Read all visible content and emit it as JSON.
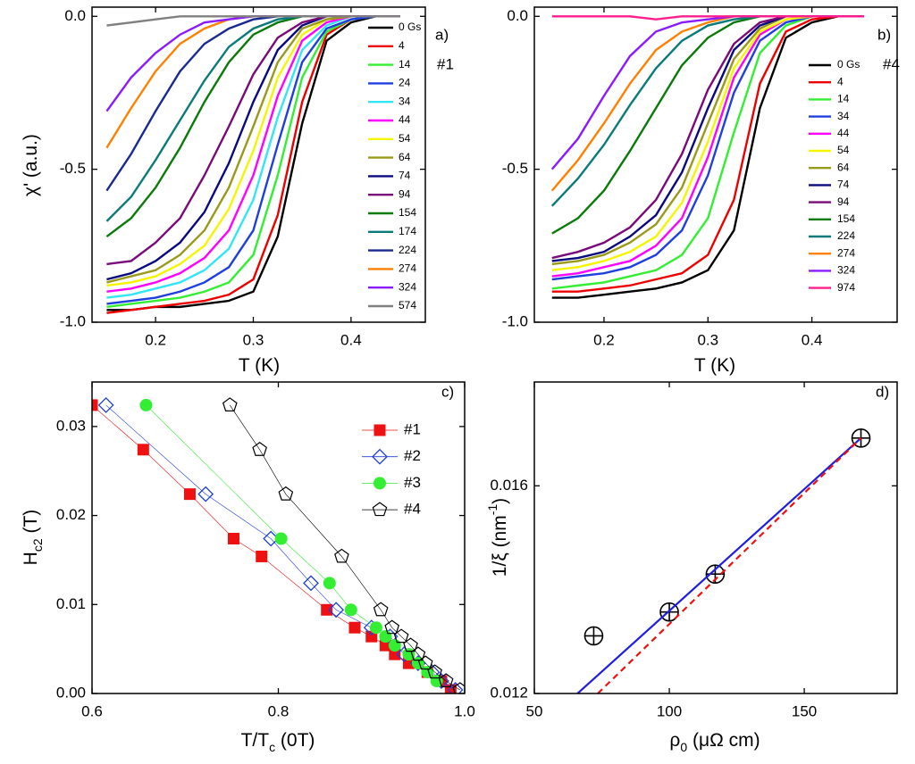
{
  "chart_data": [
    {
      "type": "line",
      "annotations": [
        "a)",
        "#1"
      ],
      "x_label": [
        {
          "text": "T (K)"
        }
      ],
      "y_label": [
        {
          "text": "χ' (a.u.)"
        }
      ],
      "xlim": [
        0.135,
        0.476
      ],
      "ylim": [
        -1.0,
        0.03
      ],
      "xticks": [
        0.2,
        0.3,
        0.4
      ],
      "yticks": [
        {
          "value": 0,
          "label": "0.0"
        },
        {
          "value": -0.5,
          "label": "-0.5"
        },
        {
          "value": -1,
          "label": "-1.0"
        }
      ],
      "x": [
        0.15,
        0.175,
        0.2,
        0.225,
        0.25,
        0.275,
        0.3,
        0.325,
        0.35,
        0.375,
        0.4,
        0.425,
        0.45
      ],
      "series": [
        {
          "name": "0 Gs",
          "color": "#000000",
          "values": [
            -0.96,
            -0.96,
            -0.95,
            -0.95,
            -0.94,
            -0.93,
            -0.9,
            -0.72,
            -0.35,
            -0.08,
            -0.02,
            0,
            0
          ]
        },
        {
          "name": "4",
          "color": "#ee0000",
          "values": [
            -0.97,
            -0.96,
            -0.95,
            -0.94,
            -0.93,
            -0.91,
            -0.86,
            -0.65,
            -0.28,
            -0.06,
            -0.01,
            0,
            0
          ]
        },
        {
          "name": "14",
          "color": "#33ee33",
          "values": [
            -0.95,
            -0.94,
            -0.93,
            -0.92,
            -0.9,
            -0.87,
            -0.78,
            -0.52,
            -0.2,
            -0.05,
            -0.01,
            0,
            0
          ]
        },
        {
          "name": "24",
          "color": "#1f3fdf",
          "values": [
            -0.94,
            -0.93,
            -0.92,
            -0.9,
            -0.87,
            -0.82,
            -0.7,
            -0.42,
            -0.15,
            -0.04,
            -0.01,
            0,
            0
          ]
        },
        {
          "name": "34",
          "color": "#33e5f5",
          "values": [
            -0.92,
            -0.91,
            -0.89,
            -0.87,
            -0.83,
            -0.76,
            -0.6,
            -0.33,
            -0.11,
            -0.03,
            0,
            0,
            0
          ]
        },
        {
          "name": "44",
          "color": "#ff00ff",
          "values": [
            -0.9,
            -0.89,
            -0.87,
            -0.84,
            -0.79,
            -0.7,
            -0.52,
            -0.26,
            -0.08,
            -0.02,
            0,
            0,
            0
          ]
        },
        {
          "name": "54",
          "color": "#f5f500",
          "values": [
            -0.88,
            -0.87,
            -0.85,
            -0.81,
            -0.75,
            -0.63,
            -0.44,
            -0.2,
            -0.06,
            -0.01,
            0,
            0,
            0
          ]
        },
        {
          "name": "64",
          "color": "#9a9a1a",
          "values": [
            -0.87,
            -0.85,
            -0.83,
            -0.78,
            -0.7,
            -0.56,
            -0.36,
            -0.15,
            -0.04,
            -0.01,
            0,
            0,
            0
          ]
        },
        {
          "name": "74",
          "color": "#0a0a80",
          "values": [
            -0.86,
            -0.84,
            -0.8,
            -0.74,
            -0.64,
            -0.48,
            -0.28,
            -0.11,
            -0.03,
            0,
            0,
            0,
            0
          ]
        },
        {
          "name": "94",
          "color": "#7a0a7a",
          "values": [
            -0.81,
            -0.8,
            -0.74,
            -0.66,
            -0.52,
            -0.36,
            -0.19,
            -0.07,
            -0.02,
            0,
            0,
            0,
            0
          ]
        },
        {
          "name": "154",
          "color": "#0a7a0a",
          "values": [
            -0.72,
            -0.66,
            -0.56,
            -0.43,
            -0.28,
            -0.15,
            -0.06,
            -0.02,
            0,
            0,
            0,
            0,
            0
          ]
        },
        {
          "name": "174",
          "color": "#0a7a7a",
          "values": [
            -0.67,
            -0.59,
            -0.47,
            -0.34,
            -0.21,
            -0.1,
            -0.04,
            -0.01,
            0,
            0,
            0,
            0,
            0
          ]
        },
        {
          "name": "224",
          "color": "#1a2a90",
          "values": [
            -0.57,
            -0.45,
            -0.31,
            -0.18,
            -0.09,
            -0.04,
            -0.01,
            0,
            0,
            0,
            0,
            0,
            0
          ]
        },
        {
          "name": "274",
          "color": "#ff8000",
          "values": [
            -0.43,
            -0.3,
            -0.18,
            -0.09,
            -0.04,
            -0.01,
            0,
            0,
            0,
            0,
            0,
            0,
            0
          ]
        },
        {
          "name": "324",
          "color": "#8a1aff",
          "values": [
            -0.31,
            -0.2,
            -0.12,
            -0.06,
            -0.02,
            -0.01,
            0,
            0,
            0,
            0,
            0,
            0,
            0
          ]
        },
        {
          "name": "574",
          "color": "#808080",
          "values": [
            -0.03,
            -0.02,
            -0.01,
            0,
            0,
            0,
            0,
            0,
            0,
            0,
            0,
            0,
            0
          ]
        }
      ]
    },
    {
      "type": "line",
      "annotations": [
        "b)",
        "#4"
      ],
      "x_label": [
        {
          "text": "T (K)"
        }
      ],
      "xlim": [
        0.133,
        0.482
      ],
      "ylim": [
        -1.0,
        0.03
      ],
      "xticks": [
        0.2,
        0.3,
        0.4
      ],
      "yticks": [
        {
          "value": 0,
          "label": "0.0"
        },
        {
          "value": -0.5,
          "label": "-0.5"
        },
        {
          "value": -1,
          "label": "-1.0"
        }
      ],
      "x": [
        0.15,
        0.175,
        0.2,
        0.225,
        0.25,
        0.275,
        0.3,
        0.325,
        0.35,
        0.375,
        0.4,
        0.425,
        0.45
      ],
      "series": [
        {
          "name": "0 Gs",
          "color": "#000000",
          "values": [
            -0.92,
            -0.92,
            -0.91,
            -0.9,
            -0.89,
            -0.87,
            -0.83,
            -0.7,
            -0.3,
            -0.07,
            -0.02,
            0,
            0
          ]
        },
        {
          "name": "4",
          "color": "#ee0000",
          "values": [
            -0.9,
            -0.9,
            -0.89,
            -0.88,
            -0.86,
            -0.84,
            -0.78,
            -0.6,
            -0.22,
            -0.05,
            -0.01,
            0,
            0
          ]
        },
        {
          "name": "14",
          "color": "#33ee33",
          "values": [
            -0.89,
            -0.88,
            -0.87,
            -0.85,
            -0.83,
            -0.78,
            -0.66,
            -0.38,
            -0.12,
            -0.03,
            0,
            0,
            0
          ]
        },
        {
          "name": "34",
          "color": "#1f3fdf",
          "values": [
            -0.86,
            -0.85,
            -0.84,
            -0.82,
            -0.78,
            -0.7,
            -0.52,
            -0.25,
            -0.08,
            -0.02,
            0,
            0,
            0
          ]
        },
        {
          "name": "44",
          "color": "#ff00ff",
          "values": [
            -0.85,
            -0.84,
            -0.82,
            -0.8,
            -0.75,
            -0.66,
            -0.46,
            -0.2,
            -0.06,
            -0.01,
            0,
            0,
            0
          ]
        },
        {
          "name": "54",
          "color": "#f5f500",
          "values": [
            -0.83,
            -0.82,
            -0.8,
            -0.77,
            -0.72,
            -0.61,
            -0.41,
            -0.17,
            -0.05,
            -0.01,
            0,
            0,
            0
          ]
        },
        {
          "name": "64",
          "color": "#9a9a1a",
          "values": [
            -0.81,
            -0.8,
            -0.78,
            -0.74,
            -0.68,
            -0.56,
            -0.35,
            -0.14,
            -0.04,
            0,
            0,
            0,
            0
          ]
        },
        {
          "name": "74",
          "color": "#0a0a80",
          "values": [
            -0.8,
            -0.79,
            -0.77,
            -0.72,
            -0.65,
            -0.51,
            -0.3,
            -0.11,
            -0.03,
            0,
            0,
            0,
            0
          ]
        },
        {
          "name": "94",
          "color": "#7a0a7a",
          "values": [
            -0.79,
            -0.77,
            -0.74,
            -0.69,
            -0.6,
            -0.45,
            -0.24,
            -0.09,
            -0.02,
            0,
            0,
            0,
            0
          ]
        },
        {
          "name": "154",
          "color": "#0a7a0a",
          "values": [
            -0.71,
            -0.66,
            -0.57,
            -0.44,
            -0.3,
            -0.16,
            -0.07,
            -0.02,
            0,
            0,
            0,
            0,
            0
          ]
        },
        {
          "name": "224",
          "color": "#0a7a7a",
          "values": [
            -0.62,
            -0.53,
            -0.42,
            -0.29,
            -0.17,
            -0.08,
            -0.03,
            -0.01,
            0,
            0,
            0,
            0,
            0
          ]
        },
        {
          "name": "274",
          "color": "#ff8000",
          "values": [
            -0.57,
            -0.47,
            -0.35,
            -0.22,
            -0.11,
            -0.05,
            -0.02,
            0,
            0,
            0,
            0,
            0,
            0
          ]
        },
        {
          "name": "324",
          "color": "#8a1aff",
          "values": [
            -0.5,
            -0.4,
            -0.26,
            -0.13,
            -0.05,
            -0.02,
            -0.01,
            0,
            0,
            0,
            0,
            0,
            0
          ]
        },
        {
          "name": "974",
          "color": "#ff1e8c",
          "values": [
            0,
            0,
            0,
            0,
            -0.01,
            0,
            0,
            0,
            0,
            0,
            0,
            0,
            0
          ]
        }
      ]
    },
    {
      "type": "scatter",
      "annotations": [
        "c)"
      ],
      "x_label": [
        {
          "text": "T/T"
        },
        {
          "text": "c",
          "shift": "sub"
        },
        {
          "text": " (0T)"
        }
      ],
      "y_label": [
        {
          "text": "H"
        },
        {
          "text": "c2",
          "shift": "sub"
        },
        {
          "text": " (T)"
        }
      ],
      "xlim": [
        0.6,
        1.0
      ],
      "ylim": [
        0,
        0.035
      ],
      "xticks": [
        0.6,
        0.8,
        {
          "value": 1,
          "label": "1.0"
        }
      ],
      "yticks": [
        {
          "value": 0,
          "label": "0.00"
        },
        {
          "value": 0.01,
          "label": "0.01"
        },
        {
          "value": 0.02,
          "label": "0.02"
        },
        {
          "value": 0.03,
          "label": "0.03"
        }
      ],
      "series": [
        {
          "name": "#1",
          "color": "#ee1111",
          "marker": "square",
          "filled": true,
          "x": [
            0.6,
            0.655,
            0.705,
            0.752,
            0.782,
            0.852,
            0.882,
            0.9,
            0.915,
            0.925,
            0.94,
            0.96,
            0.975,
            0.985
          ],
          "values": [
            0.0324,
            0.0274,
            0.0224,
            0.0174,
            0.0154,
            0.0094,
            0.0074,
            0.0064,
            0.0054,
            0.0044,
            0.0034,
            0.0024,
            0.0014,
            0.0004
          ]
        },
        {
          "name": "#2",
          "color": "#1f3fdf",
          "marker": "diamond",
          "filled": false,
          "x": [
            0.615,
            0.722,
            0.792,
            0.835,
            0.862,
            0.9,
            0.92,
            0.935,
            0.95,
            0.965,
            0.975,
            0.99
          ],
          "values": [
            0.0324,
            0.0224,
            0.0174,
            0.0124,
            0.0094,
            0.0074,
            0.0064,
            0.0044,
            0.0034,
            0.0024,
            0.0014,
            0.0004
          ]
        },
        {
          "name": "#3",
          "color": "#33ee33",
          "marker": "circle",
          "filled": true,
          "x": [
            0.658,
            0.803,
            0.855,
            0.878,
            0.905,
            0.915,
            0.925,
            0.94,
            0.95,
            0.96,
            0.97
          ],
          "values": [
            0.0324,
            0.0174,
            0.0124,
            0.0094,
            0.0074,
            0.0064,
            0.0054,
            0.0044,
            0.0034,
            0.0024,
            0.0014
          ]
        },
        {
          "name": "#4",
          "color": "#000000",
          "marker": "pentagon",
          "filled": false,
          "x": [
            0.748,
            0.78,
            0.808,
            0.868,
            0.91,
            0.922,
            0.932,
            0.942,
            0.95,
            0.958,
            0.968,
            0.98,
            0.995
          ],
          "values": [
            0.0324,
            0.0274,
            0.0224,
            0.0154,
            0.0094,
            0.0074,
            0.0064,
            0.0054,
            0.0044,
            0.0034,
            0.0024,
            0.0014,
            0.0004
          ]
        }
      ]
    },
    {
      "type": "scatter",
      "annotations": [
        "d)"
      ],
      "x_label": [
        {
          "text": "ρ"
        },
        {
          "text": "0",
          "shift": "sub"
        },
        {
          "text": " (μΩ cm)"
        }
      ],
      "y_label": [
        {
          "text": "1/ξ (nm"
        },
        {
          "text": "-1",
          "shift": "super"
        },
        {
          "text": ")"
        }
      ],
      "xlim": [
        50,
        184.4
      ],
      "ylim": [
        0.012,
        0.018
      ],
      "xticks": [
        50,
        100,
        150
      ],
      "yticks": [
        0.012,
        0.016
      ],
      "series": [
        {
          "color": "#000000",
          "marker": "circle-plus",
          "x": [
            72,
            100,
            117,
            171
          ],
          "values": [
            0.01311,
            0.01357,
            0.0143,
            0.01692
          ]
        },
        {
          "color": "#1f1fdf",
          "line": "solid",
          "x": [
            66,
            171
          ],
          "values": [
            0.012,
            0.01692
          ]
        },
        {
          "color": "#ee1111",
          "line": "dashed",
          "x": [
            73.5,
            171
          ],
          "values": [
            0.012,
            0.01692
          ]
        }
      ]
    }
  ]
}
